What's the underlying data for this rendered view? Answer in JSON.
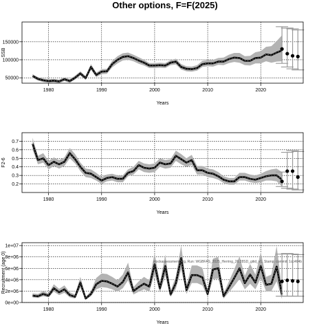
{
  "title": "Other options, F=F(2025)",
  "chart_data": [
    {
      "type": "line",
      "ylabel": "SSB",
      "xlabel": "Years",
      "xlim": [
        1975,
        2028
      ],
      "ylim": [
        35000,
        205000
      ],
      "xticks": [
        1980,
        1990,
        2000,
        2010,
        2020
      ],
      "yticks": [
        50000,
        100000,
        150000
      ],
      "ytick_labels": [
        "50000",
        "100000",
        "150000"
      ],
      "grid": true,
      "years": [
        1977,
        1978,
        1979,
        1980,
        1981,
        1982,
        1983,
        1984,
        1985,
        1986,
        1987,
        1988,
        1989,
        1990,
        1991,
        1992,
        1993,
        1994,
        1995,
        1996,
        1997,
        1998,
        1999,
        2000,
        2001,
        2002,
        2003,
        2004,
        2005,
        2006,
        2007,
        2008,
        2009,
        2010,
        2011,
        2012,
        2013,
        2014,
        2015,
        2016,
        2017,
        2018,
        2019,
        2020,
        2021,
        2022,
        2023,
        2024
      ],
      "median": [
        55000,
        47000,
        43000,
        41000,
        42000,
        40000,
        46000,
        41000,
        50000,
        62000,
        49000,
        80000,
        58000,
        67000,
        68000,
        88000,
        100000,
        108000,
        110000,
        105000,
        98000,
        92000,
        84000,
        84000,
        85000,
        84000,
        92000,
        95000,
        80000,
        75000,
        74000,
        77000,
        88000,
        90000,
        90000,
        95000,
        95000,
        102000,
        106000,
        105000,
        97000,
        97000,
        105000,
        106000,
        115000,
        113000,
        120000,
        126000
      ],
      "lower": [
        50000,
        42000,
        38000,
        36000,
        37000,
        35000,
        41000,
        36000,
        45000,
        56000,
        44000,
        72000,
        52000,
        60000,
        61000,
        79000,
        90000,
        98000,
        100000,
        96000,
        89000,
        84000,
        77000,
        77000,
        78000,
        77000,
        85000,
        87000,
        73000,
        68000,
        67000,
        70000,
        80000,
        82000,
        81000,
        86000,
        85000,
        91000,
        94000,
        92000,
        85000,
        84000,
        90000,
        90000,
        96000,
        92000,
        95000,
        96000
      ],
      "upper": [
        60000,
        52000,
        48000,
        46000,
        47000,
        45000,
        51000,
        46000,
        56000,
        68000,
        55000,
        88000,
        64000,
        74000,
        75000,
        97000,
        110000,
        118000,
        120000,
        114000,
        107000,
        100000,
        91000,
        91000,
        92000,
        91000,
        99000,
        103000,
        88000,
        82000,
        81000,
        85000,
        97000,
        99000,
        100000,
        105000,
        106000,
        114000,
        119000,
        119000,
        110000,
        111000,
        121000,
        124000,
        136000,
        138000,
        152000,
        168000
      ],
      "projection_years": [
        2024,
        2025,
        2026,
        2027
      ],
      "projection_median": [
        130000,
        117000,
        111000,
        109000
      ],
      "projection_lower": [
        90000,
        80000,
        75000,
        72000
      ],
      "projection_upper": [
        192000,
        188000,
        186000,
        183000
      ]
    },
    {
      "type": "line",
      "ylabel": "F2-6",
      "xlabel": "Years",
      "xlim": [
        1975,
        2028
      ],
      "ylim": [
        0.1,
        0.8
      ],
      "xticks": [
        1980,
        1990,
        2000,
        2010,
        2020
      ],
      "yticks": [
        0.2,
        0.3,
        0.4,
        0.5,
        0.6,
        0.7
      ],
      "ytick_labels": [
        "0.2",
        "0.3",
        "0.4",
        "0.5",
        "0.6",
        "0.7"
      ],
      "grid": true,
      "years": [
        1977,
        1978,
        1979,
        1980,
        1981,
        1982,
        1983,
        1984,
        1985,
        1986,
        1987,
        1988,
        1989,
        1990,
        1991,
        1992,
        1993,
        1994,
        1995,
        1996,
        1997,
        1998,
        1999,
        2000,
        2001,
        2002,
        2003,
        2004,
        2005,
        2006,
        2007,
        2008,
        2009,
        2010,
        2011,
        2012,
        2013,
        2014,
        2015,
        2016,
        2017,
        2018,
        2019,
        2020,
        2021,
        2022,
        2023,
        2024
      ],
      "median": [
        0.67,
        0.48,
        0.5,
        0.42,
        0.46,
        0.43,
        0.46,
        0.56,
        0.49,
        0.4,
        0.33,
        0.32,
        0.28,
        0.24,
        0.27,
        0.28,
        0.26,
        0.26,
        0.33,
        0.35,
        0.42,
        0.39,
        0.38,
        0.39,
        0.45,
        0.43,
        0.44,
        0.53,
        0.49,
        0.45,
        0.48,
        0.36,
        0.36,
        0.33,
        0.32,
        0.29,
        0.25,
        0.23,
        0.23,
        0.28,
        0.28,
        0.26,
        0.25,
        0.27,
        0.29,
        0.3,
        0.3,
        0.25
      ],
      "lower": [
        0.6,
        0.43,
        0.45,
        0.37,
        0.41,
        0.38,
        0.41,
        0.5,
        0.44,
        0.35,
        0.28,
        0.27,
        0.24,
        0.2,
        0.23,
        0.24,
        0.22,
        0.22,
        0.29,
        0.31,
        0.37,
        0.34,
        0.33,
        0.34,
        0.4,
        0.38,
        0.39,
        0.47,
        0.43,
        0.4,
        0.42,
        0.31,
        0.31,
        0.28,
        0.27,
        0.25,
        0.21,
        0.19,
        0.19,
        0.24,
        0.24,
        0.22,
        0.21,
        0.22,
        0.24,
        0.24,
        0.23,
        0.17
      ],
      "upper": [
        0.74,
        0.53,
        0.56,
        0.47,
        0.51,
        0.48,
        0.51,
        0.62,
        0.55,
        0.45,
        0.38,
        0.37,
        0.33,
        0.28,
        0.31,
        0.32,
        0.3,
        0.3,
        0.37,
        0.4,
        0.47,
        0.44,
        0.43,
        0.44,
        0.5,
        0.48,
        0.49,
        0.59,
        0.55,
        0.5,
        0.54,
        0.41,
        0.41,
        0.38,
        0.37,
        0.34,
        0.29,
        0.27,
        0.27,
        0.33,
        0.33,
        0.31,
        0.3,
        0.32,
        0.35,
        0.37,
        0.38,
        0.34
      ],
      "projection_years": [
        2024,
        2025,
        2026,
        2027
      ],
      "projection_median": [
        0.23,
        0.35,
        0.35,
        0.28
      ],
      "projection_lower": [
        0.17,
        0.15,
        0.14,
        0.13
      ],
      "projection_upper": [
        0.34,
        0.57,
        0.59,
        0.58
      ]
    },
    {
      "type": "line",
      "ylabel": "Recruitment (age 0)",
      "xlabel": "Years",
      "xlim": [
        1975,
        2028
      ],
      "ylim": [
        0,
        10500000
      ],
      "xticks": [
        1980,
        1990,
        2000,
        2010,
        2020
      ],
      "yticks": [
        0,
        2000000,
        4000000,
        6000000,
        8000000,
        10000000
      ],
      "ytick_labels": [
        "0e+00",
        "2e+06",
        "4e+06",
        "6e+06",
        "8e+06",
        "1e+07"
      ],
      "grid": true,
      "annotation": "stockassessment.org, Run: WGBFAS_2025_Herring_26.28SD_gitid_v1, Stamp: commit: 1cc464b",
      "years": [
        1977,
        1978,
        1979,
        1980,
        1981,
        1982,
        1983,
        1984,
        1985,
        1986,
        1987,
        1988,
        1989,
        1990,
        1991,
        1992,
        1993,
        1994,
        1995,
        1996,
        1997,
        1998,
        1999,
        2000,
        2001,
        2002,
        2003,
        2004,
        2005,
        2006,
        2007,
        2008,
        2009,
        2010,
        2011,
        2012,
        2013,
        2014,
        2015,
        2016,
        2017,
        2018,
        2019,
        2020,
        2021,
        2022,
        2023,
        2024
      ],
      "median": [
        1200000,
        1100000,
        1500000,
        1200000,
        2500000,
        1800000,
        2300000,
        1300000,
        1000000,
        3500000,
        700000,
        1500000,
        3200000,
        3800000,
        3700000,
        3300000,
        2800000,
        3600000,
        5300000,
        2000000,
        2700000,
        3300000,
        2800000,
        6700000,
        2500000,
        6400000,
        1400000,
        3400000,
        7800000,
        2200000,
        4800000,
        4800000,
        4400000,
        1500000,
        5800000,
        6000000,
        1100000,
        2700000,
        4300000,
        6000000,
        3400000,
        4900000,
        3500000,
        6400000,
        3100000,
        3300000,
        6300000,
        1400000
      ],
      "lower": [
        900000,
        800000,
        1100000,
        900000,
        1900000,
        1300000,
        1700000,
        900000,
        700000,
        2600000,
        500000,
        1100000,
        2300000,
        2700000,
        2600000,
        2300000,
        1900000,
        2500000,
        3900000,
        1400000,
        1900000,
        2300000,
        1900000,
        5000000,
        1800000,
        4700000,
        1000000,
        2400000,
        5800000,
        1500000,
        3400000,
        3400000,
        3000000,
        1000000,
        4100000,
        4200000,
        700000,
        1800000,
        2900000,
        4100000,
        2300000,
        3300000,
        2300000,
        4300000,
        2000000,
        2000000,
        3700000,
        600000
      ],
      "upper": [
        1600000,
        1500000,
        2000000,
        1600000,
        3200000,
        2400000,
        3000000,
        1800000,
        1400000,
        4500000,
        1000000,
        2000000,
        4300000,
        5100000,
        5000000,
        4500000,
        3900000,
        4900000,
        7000000,
        2700000,
        3700000,
        4500000,
        3900000,
        8700000,
        3400000,
        8400000,
        2000000,
        4600000,
        10000000,
        3000000,
        6500000,
        6500000,
        6100000,
        2100000,
        7700000,
        8000000,
        1600000,
        3700000,
        5800000,
        8100000,
        4700000,
        6800000,
        4900000,
        8800000,
        4500000,
        4900000,
        9900000,
        2600000
      ],
      "projection_years": [
        2024,
        2025,
        2026,
        2027
      ],
      "projection_median": [
        3700000,
        3900000,
        3800000,
        3700000
      ],
      "projection_lower": [
        1100000,
        1100000,
        1100000,
        1100000
      ],
      "projection_upper": [
        8500000,
        8600000,
        8500000,
        8400000
      ]
    }
  ]
}
